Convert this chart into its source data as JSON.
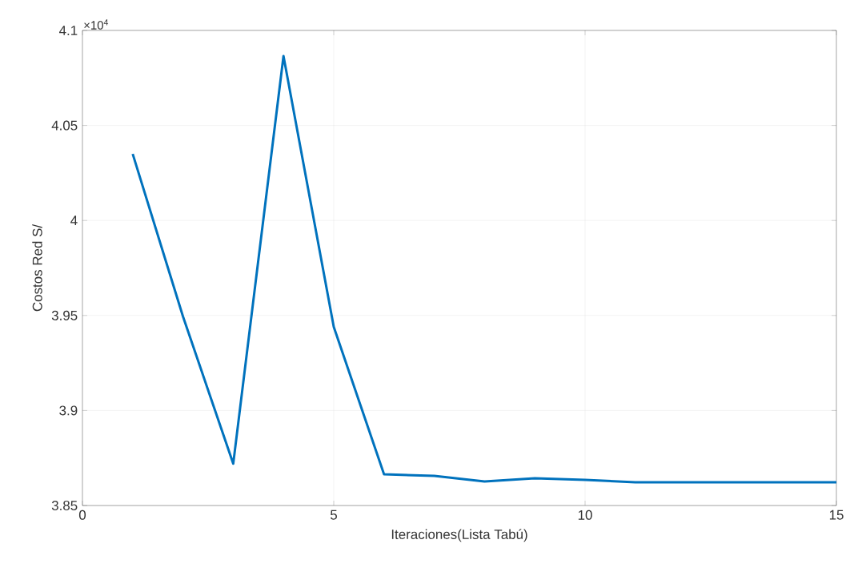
{
  "chart_data": {
    "type": "line",
    "xlabel": "Iteraciones(Lista Tabú)",
    "ylabel": "Costos Red S/",
    "x": [
      1,
      2,
      3,
      4,
      5,
      6,
      7,
      8,
      9,
      10,
      11,
      12,
      13,
      14,
      15
    ],
    "series": [
      {
        "color": "#0072bd",
        "values": [
          4.035,
          3.9495,
          3.872,
          4.0865,
          3.944,
          3.8664,
          3.8656,
          3.8626,
          3.8643,
          3.8635,
          3.8622,
          3.8622,
          3.8622,
          3.8622,
          3.8622
        ]
      }
    ],
    "xlim": [
      0,
      15
    ],
    "xticks": [
      0,
      5,
      10,
      15
    ],
    "ylim": [
      3.85,
      4.1
    ],
    "yticks": [
      3.85,
      3.9,
      3.95,
      4,
      4.05,
      4.1
    ],
    "annotations": [
      "×10$^{4}$"
    ],
    "grid": true,
    "marker": "none",
    "line_style": "solid"
  }
}
